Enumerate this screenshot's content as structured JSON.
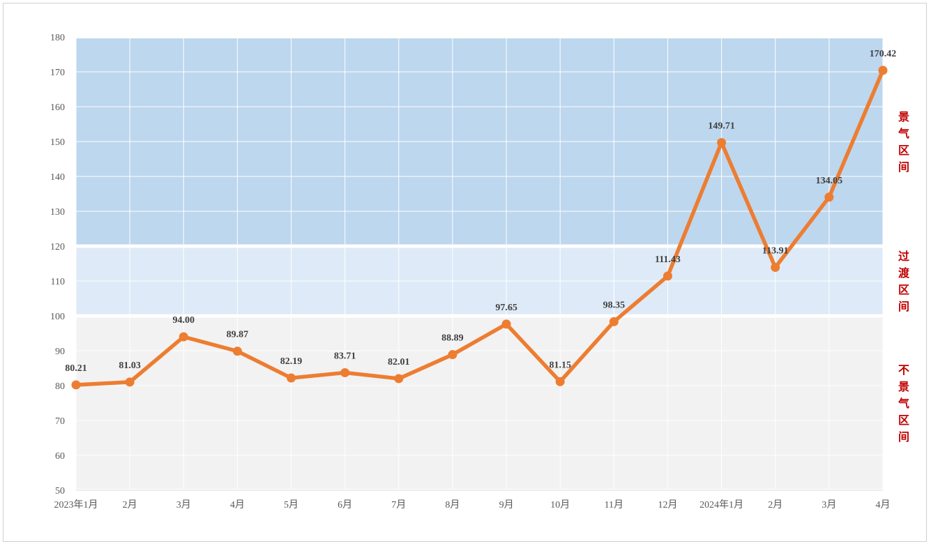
{
  "chart_data": {
    "type": "line",
    "categories": [
      "2023年1月",
      "2月",
      "3月",
      "4月",
      "5月",
      "6月",
      "7月",
      "8月",
      "9月",
      "10月",
      "11月",
      "12月",
      "2024年1月",
      "2月",
      "3月",
      "4月"
    ],
    "series": [
      {
        "values": [
          80.21,
          81.03,
          94.0,
          89.87,
          82.19,
          83.71,
          82.01,
          88.89,
          97.65,
          81.15,
          98.35,
          111.43,
          149.71,
          113.91,
          134.05,
          170.42
        ]
      }
    ],
    "data_labels": [
      "80.21",
      "81.03",
      "94.00",
      "89.87",
      "82.19",
      "83.71",
      "82.01",
      "88.89",
      "97.65",
      "81.15",
      "98.35",
      "111.43",
      "149.71",
      "113.91",
      "134.05",
      "170.42"
    ],
    "ylim": [
      50,
      180
    ],
    "yticks": [
      50,
      60,
      70,
      80,
      90,
      100,
      110,
      120,
      130,
      140,
      150,
      160,
      170,
      180
    ],
    "grid": true,
    "zones": [
      {
        "label": "不景气区间",
        "from": 50,
        "to": 100,
        "color": "#f2f2f2"
      },
      {
        "label": "过渡区间",
        "from": 100,
        "to": 120,
        "color": "#deeaf7"
      },
      {
        "label": "景气区间",
        "from": 120,
        "to": 180,
        "color": "#bdd7ee"
      }
    ],
    "line_color": "#ed7d31",
    "label_color": "#c00000"
  }
}
